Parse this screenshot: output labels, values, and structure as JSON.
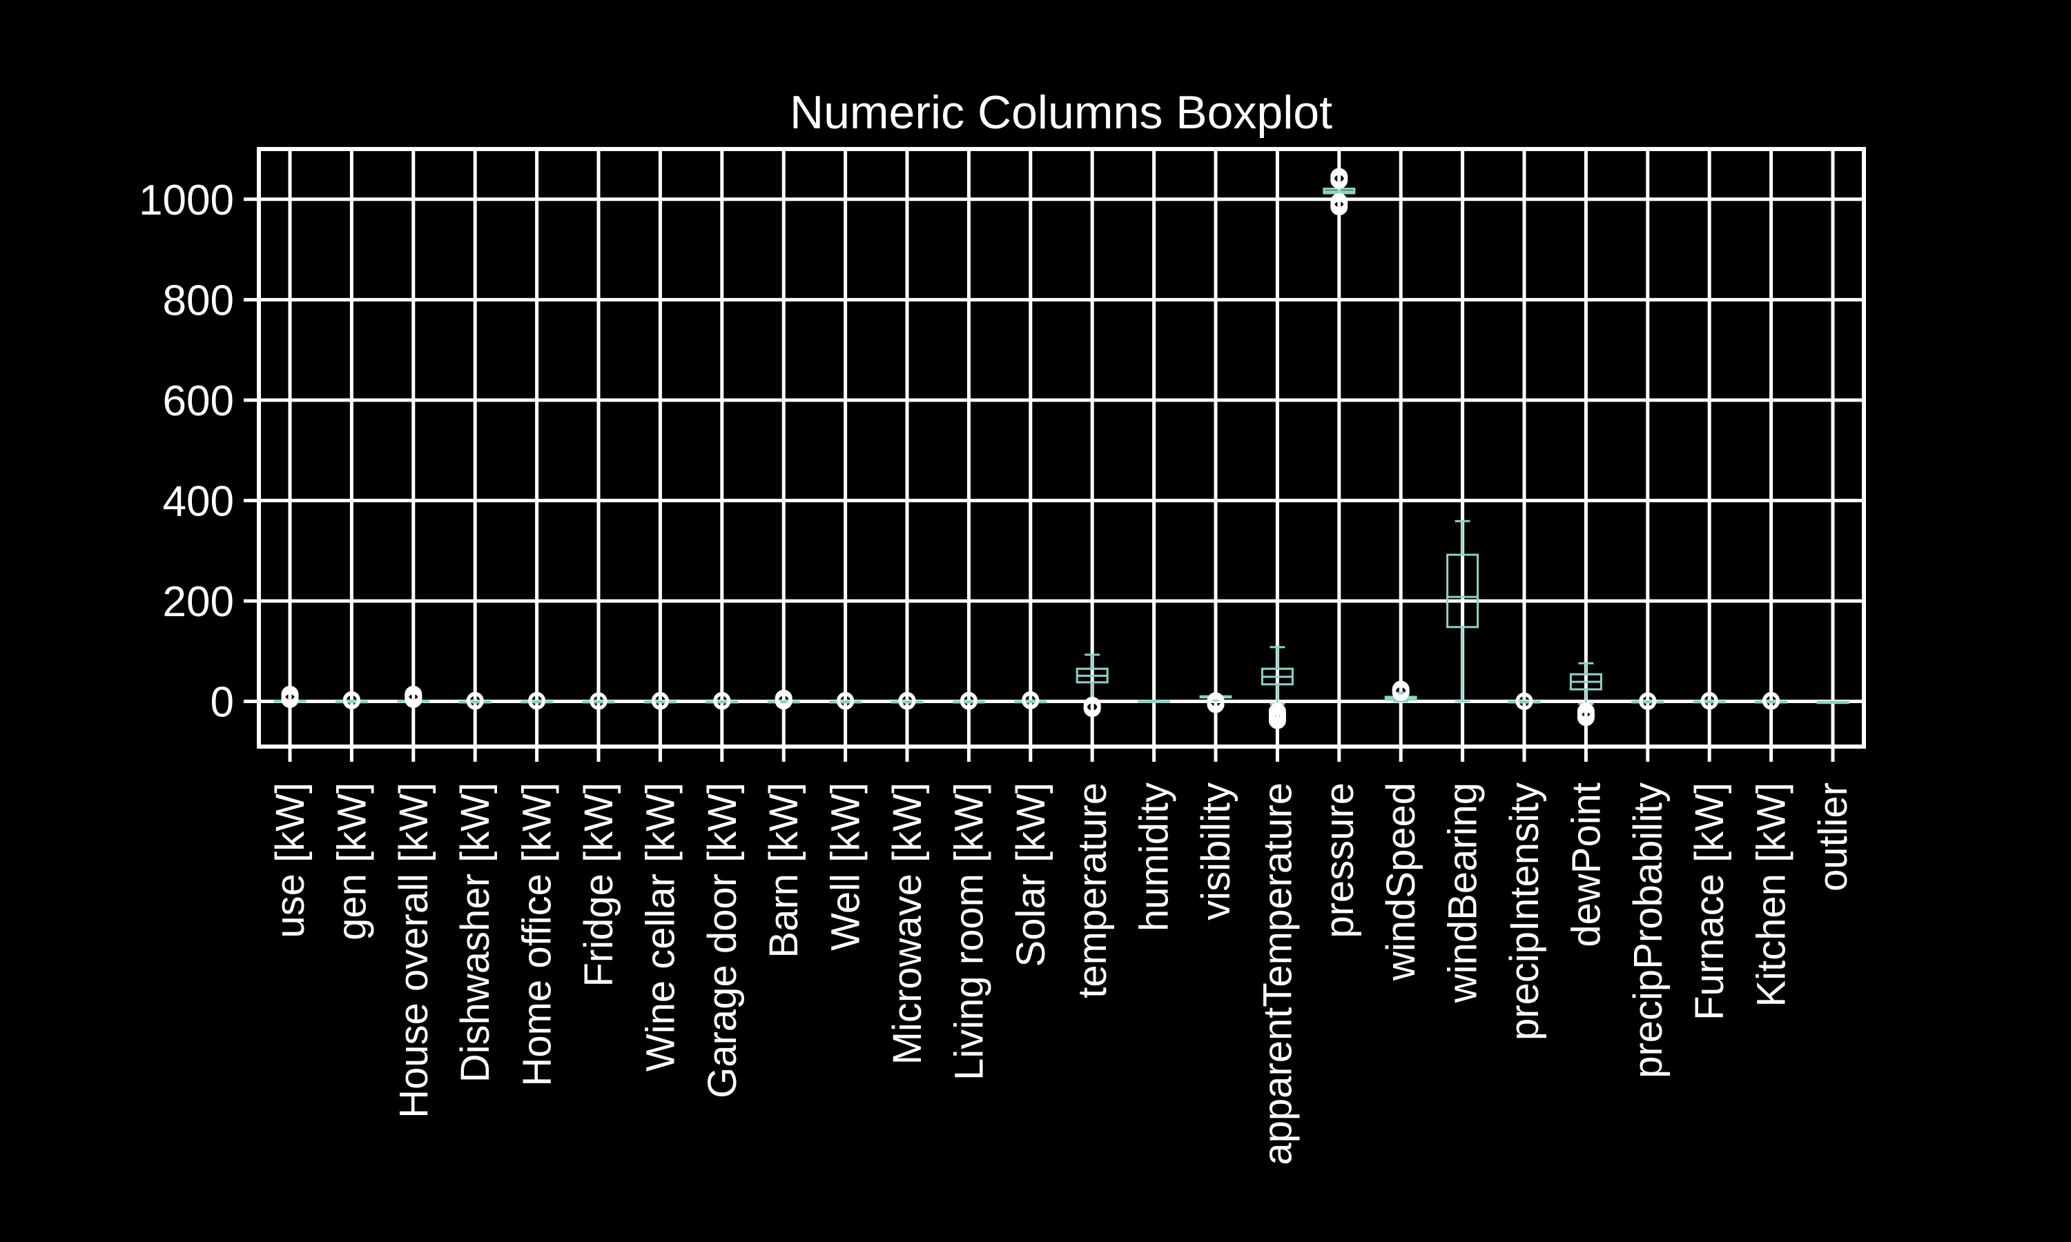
{
  "chart_data": {
    "type": "boxplot",
    "title": "Numeric Columns Boxplot",
    "xlabel": "",
    "ylabel": "",
    "ylim": [
      -90,
      1100
    ],
    "yticks": [
      0,
      200,
      400,
      600,
      800,
      1000
    ],
    "grid": true,
    "colors": {
      "background": "#000000",
      "foreground": "#ffffff",
      "box": "#8dd3c7"
    },
    "categories": [
      "use [kW]",
      "gen [kW]",
      "House overall [kW]",
      "Dishwasher [kW]",
      "Home office [kW]",
      "Fridge [kW]",
      "Wine cellar [kW]",
      "Garage door [kW]",
      "Barn [kW]",
      "Well [kW]",
      "Microwave [kW]",
      "Living room [kW]",
      "Solar [kW]",
      "temperature",
      "humidity",
      "visibility",
      "apparentTemperature",
      "pressure",
      "windSpeed",
      "windBearing",
      "precipIntensity",
      "dewPoint",
      "precipProbability",
      "Furnace [kW]",
      "Kitchen [kW]",
      "outlier"
    ],
    "boxes": [
      {
        "name": "use [kW]",
        "whislo": 0,
        "q1": 0.5,
        "med": 0.8,
        "q3": 1.5,
        "whishi": 3,
        "fliers": [
          4,
          6,
          8,
          10,
          12,
          14
        ]
      },
      {
        "name": "gen [kW]",
        "whislo": 0,
        "q1": 0,
        "med": 0,
        "q3": 0.3,
        "whishi": 1,
        "fliers": [
          1.5,
          2,
          3
        ]
      },
      {
        "name": "House overall [kW]",
        "whislo": 0,
        "q1": 0.5,
        "med": 0.8,
        "q3": 1.5,
        "whishi": 3,
        "fliers": [
          4,
          6,
          8,
          10,
          12,
          14
        ]
      },
      {
        "name": "Dishwasher [kW]",
        "whislo": 0,
        "q1": 0,
        "med": 0,
        "q3": 0,
        "whishi": 0,
        "fliers": [
          0.5,
          1,
          1.5
        ]
      },
      {
        "name": "Home office [kW]",
        "whislo": 0,
        "q1": 0,
        "med": 0.1,
        "q3": 0.2,
        "whishi": 0.5,
        "fliers": [
          0.8,
          1,
          1.5
        ]
      },
      {
        "name": "Fridge [kW]",
        "whislo": 0,
        "q1": 0,
        "med": 0.1,
        "q3": 0.1,
        "whishi": 0.2,
        "fliers": [
          0.4,
          0.6,
          0.8
        ]
      },
      {
        "name": "Wine cellar [kW]",
        "whislo": 0,
        "q1": 0,
        "med": 0,
        "q3": 0.1,
        "whishi": 0.2,
        "fliers": [
          0.5,
          1,
          1.5
        ]
      },
      {
        "name": "Garage door [kW]",
        "whislo": 0,
        "q1": 0,
        "med": 0,
        "q3": 0,
        "whishi": 0,
        "fliers": [
          0.5,
          1,
          1.5
        ]
      },
      {
        "name": "Barn [kW]",
        "whislo": 0,
        "q1": 0,
        "med": 0,
        "q3": 0.1,
        "whishi": 0.2,
        "fliers": [
          1,
          2,
          4,
          6
        ]
      },
      {
        "name": "Well [kW]",
        "whislo": 0,
        "q1": 0,
        "med": 0,
        "q3": 0,
        "whishi": 0,
        "fliers": [
          0.5,
          1,
          1.5
        ]
      },
      {
        "name": "Microwave [kW]",
        "whislo": 0,
        "q1": 0,
        "med": 0,
        "q3": 0,
        "whishi": 0,
        "fliers": [
          0.5,
          1,
          1.5
        ]
      },
      {
        "name": "Living room [kW]",
        "whislo": 0,
        "q1": 0,
        "med": 0,
        "q3": 0,
        "whishi": 0.1,
        "fliers": [
          0.5,
          1,
          1.5
        ]
      },
      {
        "name": "Solar [kW]",
        "whislo": 0,
        "q1": 0,
        "med": 0,
        "q3": 0.3,
        "whishi": 1,
        "fliers": [
          1.5,
          2,
          3
        ]
      },
      {
        "name": "temperature",
        "whislo": 0,
        "q1": 38,
        "med": 51,
        "q3": 65,
        "whishi": 93,
        "fliers": [
          -8,
          -10,
          -12,
          -14
        ]
      },
      {
        "name": "humidity",
        "whislo": 0.1,
        "q1": 0.5,
        "med": 0.65,
        "q3": 0.8,
        "whishi": 1,
        "fliers": []
      },
      {
        "name": "visibility",
        "whislo": 2,
        "q1": 9.5,
        "med": 10,
        "q3": 10,
        "whishi": 10,
        "fliers": [
          0,
          1,
          -2,
          -4,
          -6
        ]
      },
      {
        "name": "apparentTemperature",
        "whislo": -5,
        "q1": 34,
        "med": 49,
        "q3": 65,
        "whishi": 108,
        "fliers": [
          -20,
          -25,
          -28,
          -32,
          -35,
          -38
        ]
      },
      {
        "name": "pressure",
        "whislo": 1000,
        "q1": 1012,
        "med": 1016,
        "q3": 1021,
        "whishi": 1033,
        "fliers": [
          985,
          990,
          995,
          1038,
          1042,
          1045
        ]
      },
      {
        "name": "windSpeed",
        "whislo": 0,
        "q1": 3.5,
        "med": 6,
        "q3": 9,
        "whishi": 17,
        "fliers": [
          18,
          20,
          22,
          24
        ]
      },
      {
        "name": "windBearing",
        "whislo": 0,
        "q1": 148,
        "med": 208,
        "q3": 292,
        "whishi": 359,
        "fliers": []
      },
      {
        "name": "precipIntensity",
        "whislo": 0,
        "q1": 0,
        "med": 0,
        "q3": 0,
        "whishi": 0,
        "fliers": [
          0.1,
          0.2,
          0.3
        ]
      },
      {
        "name": "dewPoint",
        "whislo": -5,
        "q1": 24,
        "med": 39,
        "q3": 54,
        "whishi": 76,
        "fliers": [
          -20,
          -24,
          -28,
          -32
        ]
      },
      {
        "name": "precipProbability",
        "whislo": 0,
        "q1": 0,
        "med": 0,
        "q3": 0,
        "whishi": 0,
        "fliers": [
          0.2,
          0.5,
          0.8
        ]
      },
      {
        "name": "Furnace [kW]",
        "whislo": 0,
        "q1": 0.02,
        "med": 0.05,
        "q3": 0.2,
        "whishi": 0.5,
        "fliers": [
          0.8,
          1,
          1.5
        ]
      },
      {
        "name": "Kitchen [kW]",
        "whislo": 0,
        "q1": 0,
        "med": 0,
        "q3": 0,
        "whishi": 0.1,
        "fliers": [
          0.5,
          1,
          1.5
        ]
      },
      {
        "name": "outlier",
        "whislo": -1,
        "q1": -1,
        "med": -1,
        "q3": -1,
        "whishi": -1,
        "fliers": []
      }
    ]
  }
}
